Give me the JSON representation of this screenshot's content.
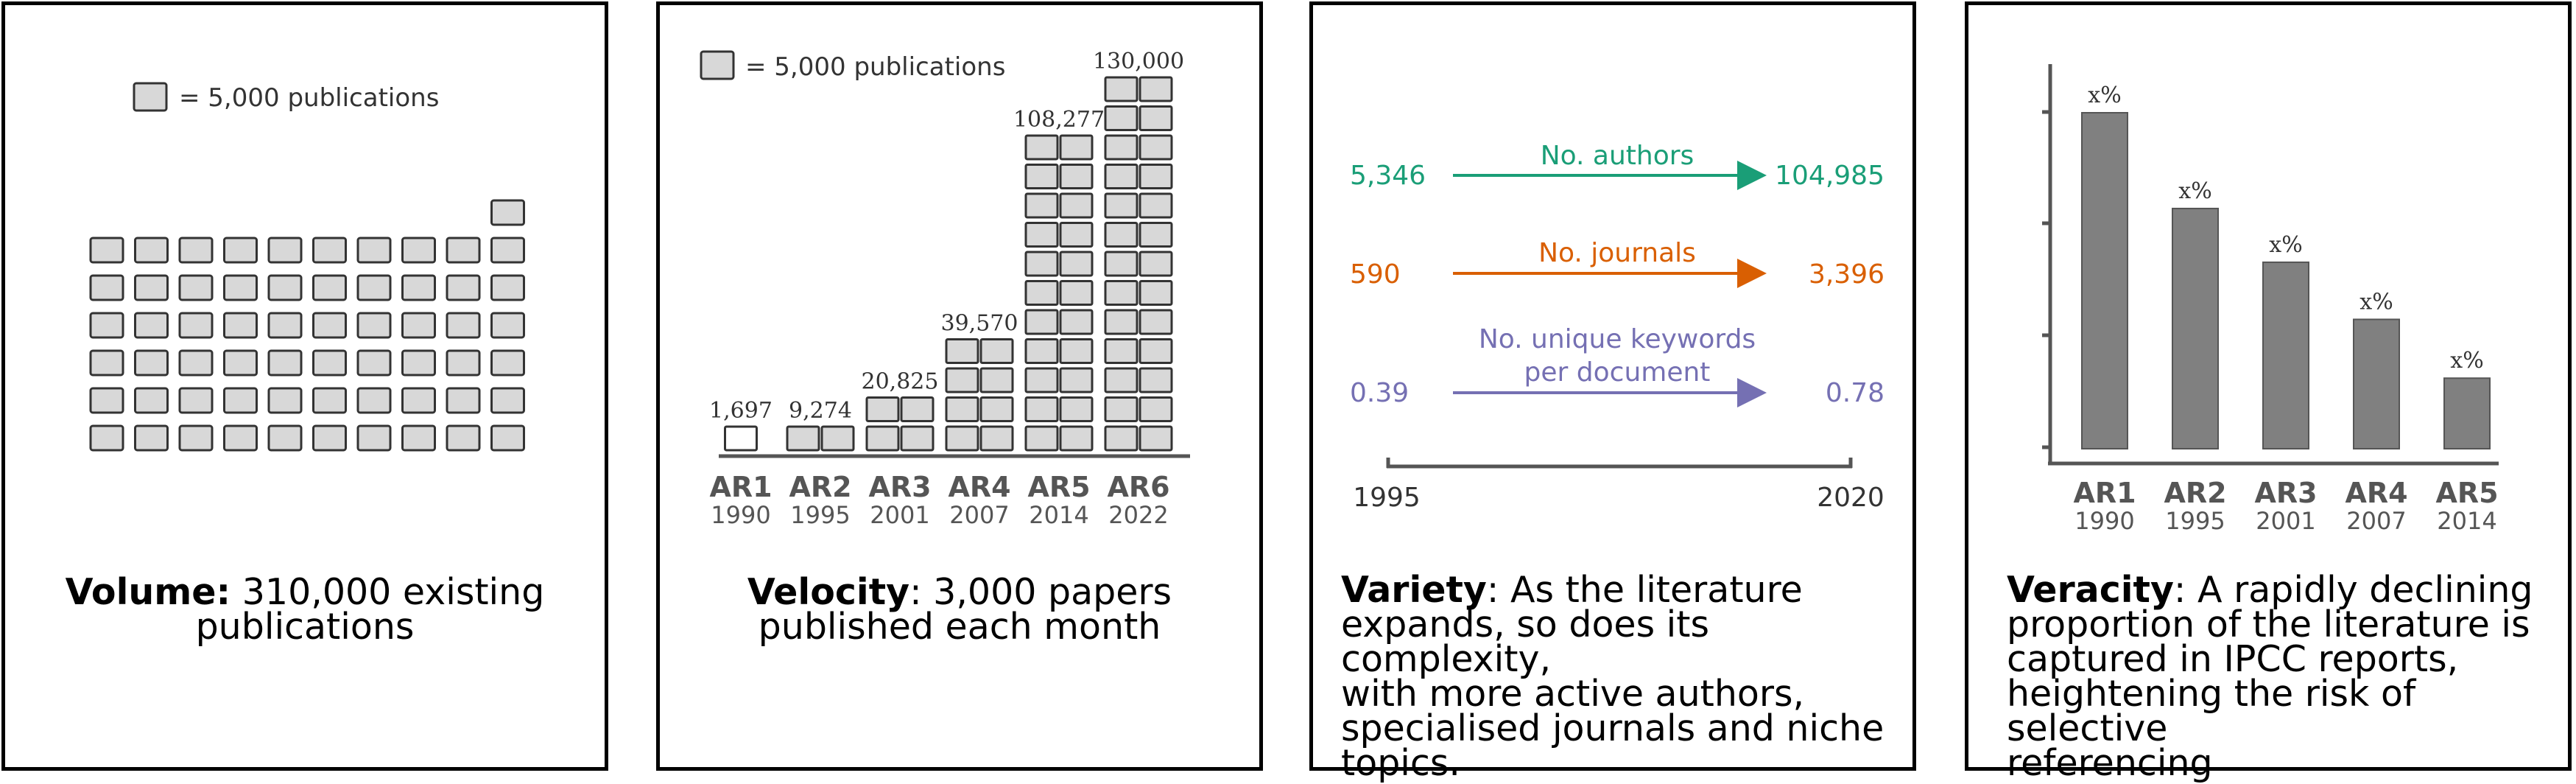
{
  "colors": {
    "box_fill": "#d8d8d8",
    "box_stroke": "#333333",
    "axis": "#555555",
    "bar": "#808080",
    "authors": "#1a9e77",
    "journals": "#d95f02",
    "keywords": "#7570b3"
  },
  "volume": {
    "legend_label": "= 5,000 publications",
    "caption_bold": "Volume:",
    "caption_line1": " 310,000 existing",
    "caption_line2": "publications",
    "total_boxes": 61
  },
  "velocity": {
    "legend_label": "= 5,000 publications",
    "caption_bold": "Velocity",
    "caption_line1": ": 3,000 papers",
    "caption_line2": "published each month",
    "chart_data": {
      "type": "bar",
      "categories": [
        "AR1",
        "AR2",
        "AR3",
        "AR4",
        "AR5",
        "AR6"
      ],
      "years": [
        "1990",
        "1995",
        "2001",
        "2007",
        "2014",
        "2022"
      ],
      "values": [
        1697,
        9274,
        20825,
        39570,
        108277,
        130000
      ],
      "value_labels": [
        "1,697",
        "9,274",
        "20,825",
        "39,570",
        "108,277",
        "130,000"
      ],
      "boxes": [
        1,
        2,
        4,
        8,
        22,
        26
      ],
      "unit_per_box": 5000
    }
  },
  "variety": {
    "rows": [
      {
        "label": "No. authors",
        "start": "5,346",
        "end": "104,985",
        "color": "#1a9e77"
      },
      {
        "label": "No. journals",
        "start": "590",
        "end": "3,396",
        "color": "#d95f02"
      },
      {
        "label_line1": "No. unique keywords",
        "label_line2": "per document",
        "start": "0.39",
        "end": "0.78",
        "color": "#7570b3"
      }
    ],
    "axis_start": "1995",
    "axis_end": "2020",
    "caption_bold": "Variety",
    "caption_line1": ": As the literature",
    "caption_line2": "expands, so does its complexity,",
    "caption_line3": "with more active authors,",
    "caption_line4": "specialised journals and niche",
    "caption_line5": "topics."
  },
  "veracity": {
    "chart_data": {
      "type": "bar",
      "categories": [
        "AR1",
        "AR2",
        "AR3",
        "AR4",
        "AR5"
      ],
      "years": [
        "1990",
        "1995",
        "2001",
        "2007",
        "2014"
      ],
      "bar_labels": [
        "x%",
        "x%",
        "x%",
        "x%",
        "x%"
      ],
      "relative_heights": [
        1.0,
        0.715,
        0.555,
        0.385,
        0.21
      ]
    },
    "caption_bold": "Veracity",
    "caption_line1": ": A rapidly declining",
    "caption_line2": "proportion of the literature is",
    "caption_line3": "captured in IPCC reports,",
    "caption_line4": "heightening the risk of selective",
    "caption_line5": "referencing"
  }
}
